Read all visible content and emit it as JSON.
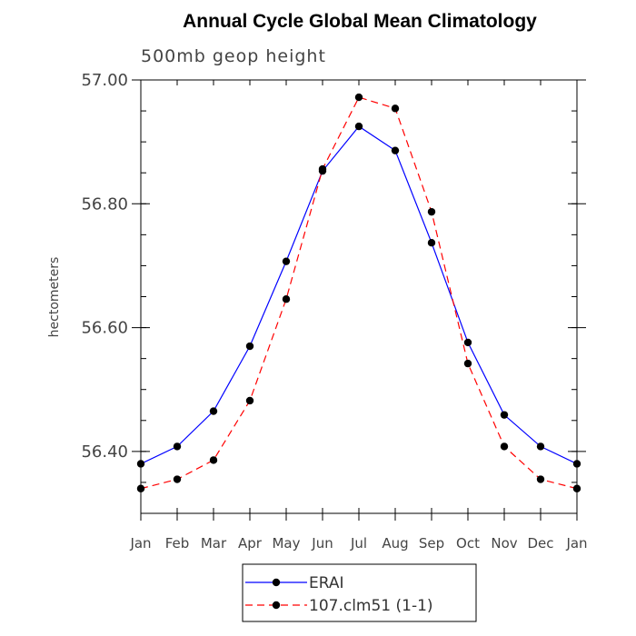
{
  "chart_data": {
    "type": "line",
    "title": "Annual Cycle Global Mean Climatology",
    "subtitle": "500mb geop height",
    "ylabel": "hectometers",
    "xlabel": "",
    "categories": [
      "Jan",
      "Feb",
      "Mar",
      "Apr",
      "May",
      "Jun",
      "Jul",
      "Aug",
      "Sep",
      "Oct",
      "Nov",
      "Dec",
      "Jan"
    ],
    "ylim": [
      56.3,
      57.0
    ],
    "yticks_major": [
      56.4,
      56.6,
      56.8,
      57.0
    ],
    "ytick_labels": [
      "56.40",
      "56.60",
      "56.80",
      "57.00"
    ],
    "yticks_minor_step": 0.05,
    "grid": false,
    "legend_position": "bottom",
    "series": [
      {
        "name": "ERAI",
        "color": "#0000ff",
        "style": "solid",
        "values": [
          56.38,
          56.408,
          56.465,
          56.57,
          56.707,
          56.853,
          56.925,
          56.886,
          56.737,
          56.576,
          56.459,
          56.408,
          56.38
        ]
      },
      {
        "name": "107.clm51 (1-1)",
        "color": "#ff0000",
        "style": "dashed",
        "values": [
          56.34,
          56.355,
          56.386,
          56.482,
          56.646,
          56.856,
          56.972,
          56.954,
          56.787,
          56.542,
          56.408,
          56.355,
          56.34
        ]
      }
    ]
  }
}
